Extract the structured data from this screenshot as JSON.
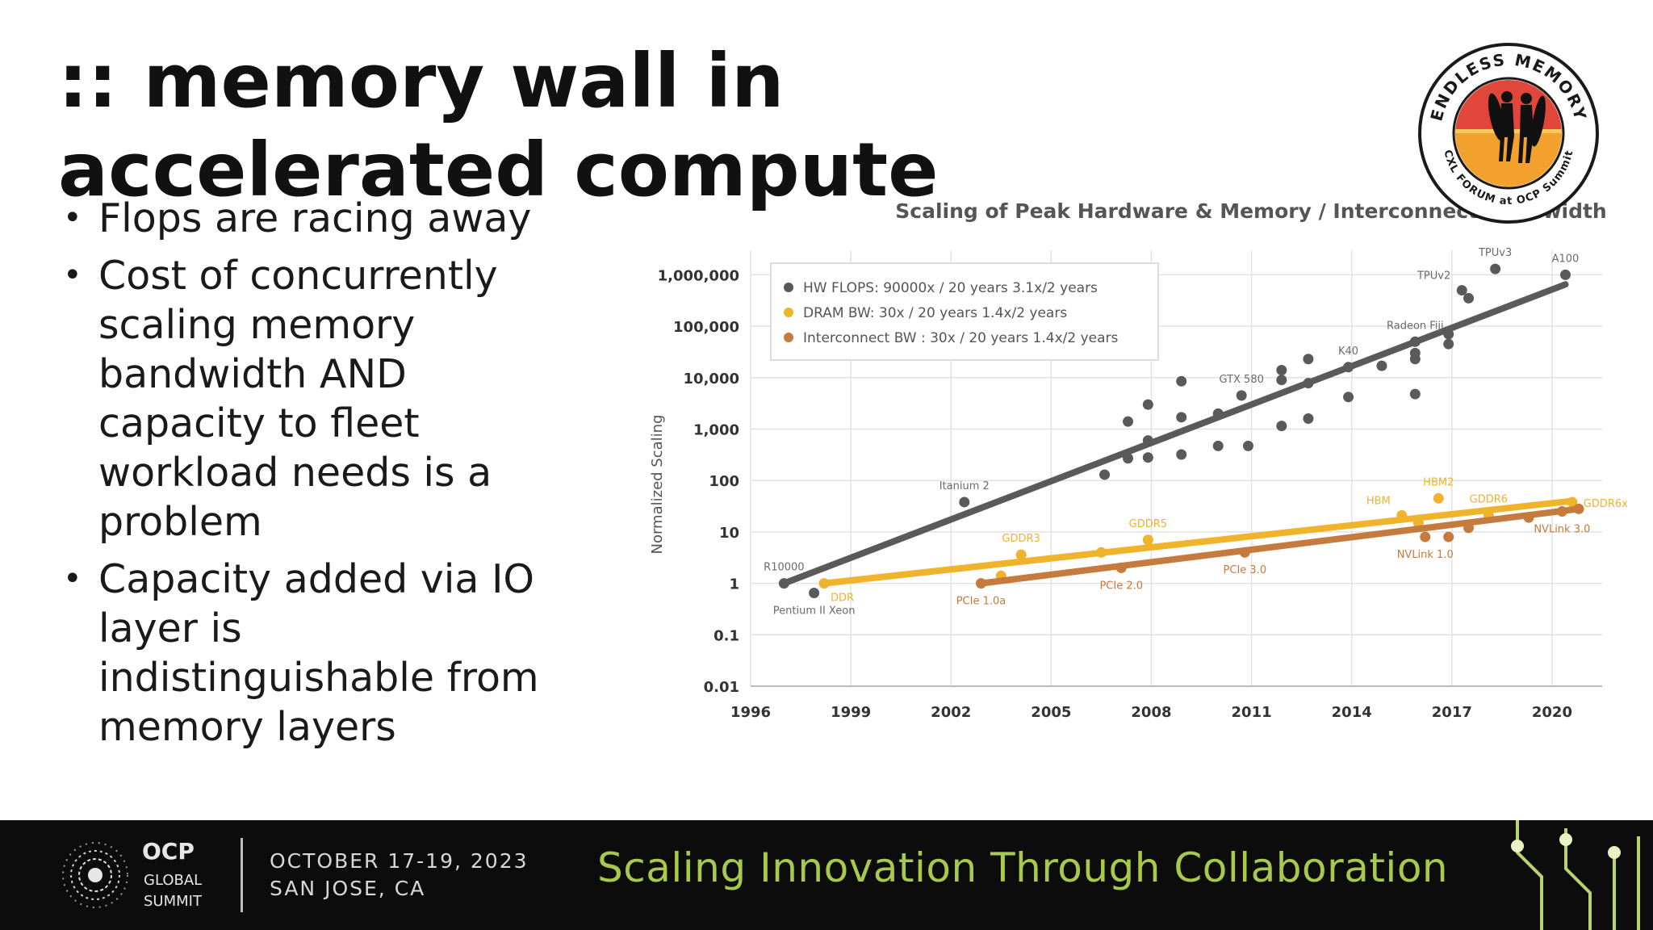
{
  "slide": {
    "title": ":: memory wall in accelerated compute",
    "bullets": [
      "Flops are racing away",
      "Cost of concurrently scaling memory bandwidth AND capacity to fleet workload needs is a problem",
      "Capacity added via IO layer is indistinguishable from memory layers"
    ]
  },
  "badge": {
    "top_text": "ENDLESS MEMORY",
    "bottom_text": "CXL FORUM at OCP Summit",
    "colors": {
      "sun": "#f2a12e",
      "sky": "#e0463a",
      "ring": "#1a1a1a"
    }
  },
  "footer": {
    "logo_line1": "OCP",
    "logo_line2": "GLOBAL",
    "logo_line3": "SUMMIT",
    "date": "OCTOBER 17-19, 2023",
    "place": "SAN JOSE, CA",
    "tagline": "Scaling Innovation Through Collaboration",
    "colors": {
      "background": "#0c0c0c",
      "tagline": "#a8c94a"
    }
  },
  "chart_data": {
    "type": "scatter",
    "title": "Scaling of Peak Hardware & Memory / Interconnect Bandwidth",
    "xlabel": "",
    "ylabel": "Normalized Scaling",
    "xlim": [
      1996,
      2021.5
    ],
    "ylim": [
      0.01,
      3000000
    ],
    "yscale": "log",
    "x_ticks": [
      1996,
      1999,
      2002,
      2005,
      2008,
      2011,
      2014,
      2017,
      2020
    ],
    "y_ticks": [
      {
        "value": 1000000,
        "label": "1,000,000"
      },
      {
        "value": 100000,
        "label": "100,000"
      },
      {
        "value": 10000,
        "label": "10,000"
      },
      {
        "value": 1000,
        "label": "1,000"
      },
      {
        "value": 100,
        "label": "100"
      },
      {
        "value": 10,
        "label": "10"
      },
      {
        "value": 1,
        "label": "1"
      },
      {
        "value": 0.1,
        "label": "0.1"
      },
      {
        "value": 0.01,
        "label": "0.01"
      }
    ],
    "grid": true,
    "legend_position": "top-left",
    "series": [
      {
        "name": "HW FLOPS: 90000x / 20 years 3.1x/2 years",
        "color": "#5a5a5a",
        "trend": {
          "x": [
            1997.0,
            2020.4
          ],
          "y": [
            1.0,
            650000
          ]
        },
        "points": [
          {
            "x": 1997.0,
            "y": 1.0
          },
          {
            "x": 1997.9,
            "y": 0.65
          },
          {
            "x": 2002.4,
            "y": 38
          },
          {
            "x": 2006.6,
            "y": 130
          },
          {
            "x": 2007.3,
            "y": 1400
          },
          {
            "x": 2007.3,
            "y": 270
          },
          {
            "x": 2007.9,
            "y": 3000
          },
          {
            "x": 2007.9,
            "y": 600
          },
          {
            "x": 2007.9,
            "y": 280
          },
          {
            "x": 2008.9,
            "y": 8500
          },
          {
            "x": 2008.9,
            "y": 1700
          },
          {
            "x": 2008.9,
            "y": 320
          },
          {
            "x": 2010.0,
            "y": 2000
          },
          {
            "x": 2010.0,
            "y": 470
          },
          {
            "x": 2010.7,
            "y": 4500
          },
          {
            "x": 2010.9,
            "y": 470
          },
          {
            "x": 2011.9,
            "y": 14000
          },
          {
            "x": 2011.9,
            "y": 9000
          },
          {
            "x": 2011.9,
            "y": 1150
          },
          {
            "x": 2012.7,
            "y": 23000
          },
          {
            "x": 2012.7,
            "y": 7800
          },
          {
            "x": 2012.7,
            "y": 1600
          },
          {
            "x": 2013.9,
            "y": 16000
          },
          {
            "x": 2013.9,
            "y": 4200
          },
          {
            "x": 2014.9,
            "y": 17000
          },
          {
            "x": 2015.9,
            "y": 50000
          },
          {
            "x": 2015.9,
            "y": 30000
          },
          {
            "x": 2015.9,
            "y": 23000
          },
          {
            "x": 2015.9,
            "y": 4800
          },
          {
            "x": 2016.9,
            "y": 70000
          },
          {
            "x": 2016.9,
            "y": 45000
          },
          {
            "x": 2017.3,
            "y": 500000
          },
          {
            "x": 2017.5,
            "y": 350000
          },
          {
            "x": 2018.3,
            "y": 1300000
          },
          {
            "x": 2020.4,
            "y": 1000000
          }
        ],
        "labels": [
          {
            "text": "R10000",
            "x": 1997.0,
            "y": 1.0,
            "position": "above"
          },
          {
            "text": "Pentium II Xeon",
            "x": 1997.9,
            "y": 0.65,
            "position": "below"
          },
          {
            "text": "Itanium 2",
            "x": 2002.4,
            "y": 38,
            "position": "above"
          },
          {
            "text": "GTX 580",
            "x": 2010.7,
            "y": 4500,
            "position": "above"
          },
          {
            "text": "K40",
            "x": 2013.9,
            "y": 16000,
            "position": "above"
          },
          {
            "text": "Radeon Fiji",
            "x": 2015.9,
            "y": 50000,
            "position": "above"
          },
          {
            "text": "TPUv2",
            "x": 2017.3,
            "y": 500000,
            "position": "above-left"
          },
          {
            "text": "TPUv3",
            "x": 2018.3,
            "y": 1300000,
            "position": "above"
          },
          {
            "text": "A100",
            "x": 2020.4,
            "y": 1000000,
            "position": "above"
          }
        ]
      },
      {
        "name": "DRAM BW: 30x / 20 years 1.4x/2 years",
        "color": "#efb32c",
        "trend": {
          "x": [
            1998.2,
            2020.6
          ],
          "y": [
            1.0,
            40
          ]
        },
        "points": [
          {
            "x": 1998.2,
            "y": 1.0
          },
          {
            "x": 2003.5,
            "y": 1.4
          },
          {
            "x": 2004.1,
            "y": 3.6
          },
          {
            "x": 2006.5,
            "y": 4.0
          },
          {
            "x": 2007.9,
            "y": 7.0
          },
          {
            "x": 2015.5,
            "y": 21
          },
          {
            "x": 2016.0,
            "y": 15
          },
          {
            "x": 2016.6,
            "y": 45
          },
          {
            "x": 2018.1,
            "y": 21
          },
          {
            "x": 2020.6,
            "y": 38
          }
        ],
        "labels": [
          {
            "text": "DDR",
            "x": 1998.2,
            "y": 1.0,
            "position": "below-right"
          },
          {
            "text": "GDDR3",
            "x": 2004.1,
            "y": 3.6,
            "position": "above"
          },
          {
            "text": "GDDR5",
            "x": 2007.9,
            "y": 7.0,
            "position": "above"
          },
          {
            "text": "HBM",
            "x": 2015.5,
            "y": 21,
            "position": "above-left"
          },
          {
            "text": "HBM2",
            "x": 2016.6,
            "y": 45,
            "position": "above"
          },
          {
            "text": "GDDR6",
            "x": 2018.1,
            "y": 21,
            "position": "above"
          },
          {
            "text": "GDDR6x",
            "x": 2020.6,
            "y": 38,
            "position": "right"
          }
        ]
      },
      {
        "name": "Interconnect BW : 30x / 20 years 1.4x/2 years",
        "color": "#c57a3e",
        "trend": {
          "x": [
            2002.9,
            2020.8
          ],
          "y": [
            1.0,
            28
          ]
        },
        "points": [
          {
            "x": 2002.9,
            "y": 1.0
          },
          {
            "x": 2007.1,
            "y": 2.0
          },
          {
            "x": 2010.8,
            "y": 4.0
          },
          {
            "x": 2016.2,
            "y": 8.0
          },
          {
            "x": 2016.9,
            "y": 8.0
          },
          {
            "x": 2017.5,
            "y": 12
          },
          {
            "x": 2019.3,
            "y": 19
          },
          {
            "x": 2020.3,
            "y": 25
          },
          {
            "x": 2020.8,
            "y": 28
          }
        ],
        "labels": [
          {
            "text": "PCIe 1.0a",
            "x": 2002.9,
            "y": 1.0,
            "position": "below"
          },
          {
            "text": "PCIe 2.0",
            "x": 2007.1,
            "y": 2.0,
            "position": "below"
          },
          {
            "text": "PCIe 3.0",
            "x": 2010.8,
            "y": 4.0,
            "position": "below"
          },
          {
            "text": "NVLink 1.0",
            "x": 2016.2,
            "y": 8.0,
            "position": "below"
          },
          {
            "text": "NVLink 3.0",
            "x": 2020.3,
            "y": 25,
            "position": "below"
          }
        ]
      }
    ]
  }
}
